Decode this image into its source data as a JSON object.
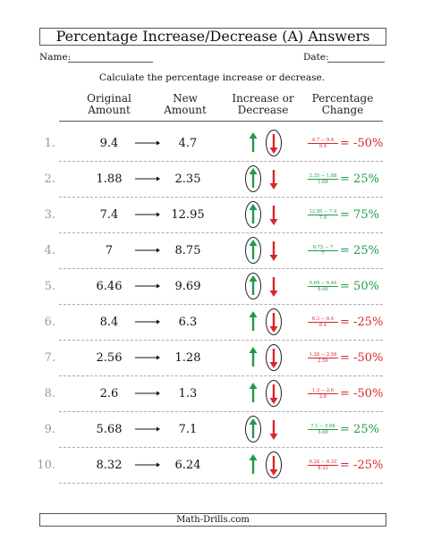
{
  "title": "Percentage Increase/Decrease (A) Answers",
  "name_label": "Name:",
  "date_label": "Date:",
  "instruction": "Calculate the percentage increase or decrease.",
  "headers": {
    "original": [
      "Original",
      "Amount"
    ],
    "new": [
      "New",
      "Amount"
    ],
    "direction": [
      "Increase or",
      "Decrease"
    ],
    "change": [
      "Percentage",
      "Change"
    ]
  },
  "rows": [
    {
      "num": "1.",
      "original": "9.4",
      "new": "4.7",
      "direction": "decrease",
      "numerator": "4.7 − 9.4",
      "denominator": "9.4",
      "equals": "=",
      "answer": "-50%",
      "color": "#d9262b"
    },
    {
      "num": "2.",
      "original": "1.88",
      "new": "2.35",
      "direction": "increase",
      "numerator": "2.35 − 1.88",
      "denominator": "1.88",
      "equals": "=",
      "answer": "25%",
      "color": "#1f9a48"
    },
    {
      "num": "3.",
      "original": "7.4",
      "new": "12.95",
      "direction": "increase",
      "numerator": "12.95 − 7.4",
      "denominator": "7.4",
      "equals": "=",
      "answer": "75%",
      "color": "#1f9a48"
    },
    {
      "num": "4.",
      "original": "7",
      "new": "8.75",
      "direction": "increase",
      "numerator": "8.75 − 7",
      "denominator": "7",
      "equals": "=",
      "answer": "25%",
      "color": "#1f9a48"
    },
    {
      "num": "5.",
      "original": "6.46",
      "new": "9.69",
      "direction": "increase",
      "numerator": "9.69 − 6.46",
      "denominator": "6.46",
      "equals": "=",
      "answer": "50%",
      "color": "#1f9a48"
    },
    {
      "num": "6.",
      "original": "8.4",
      "new": "6.3",
      "direction": "decrease",
      "numerator": "6.3 − 8.4",
      "denominator": "8.4",
      "equals": "=",
      "answer": "-25%",
      "color": "#d9262b"
    },
    {
      "num": "7.",
      "original": "2.56",
      "new": "1.28",
      "direction": "decrease",
      "numerator": "1.28 − 2.56",
      "denominator": "2.56",
      "equals": "=",
      "answer": "-50%",
      "color": "#d9262b"
    },
    {
      "num": "8.",
      "original": "2.6",
      "new": "1.3",
      "direction": "decrease",
      "numerator": "1.3 − 2.6",
      "denominator": "2.6",
      "equals": "=",
      "answer": "-50%",
      "color": "#d9262b"
    },
    {
      "num": "9.",
      "original": "5.68",
      "new": "7.1",
      "direction": "increase",
      "numerator": "7.1 − 5.68",
      "denominator": "5.68",
      "equals": "=",
      "answer": "25%",
      "color": "#1f9a48"
    },
    {
      "num": "10.",
      "original": "8.32",
      "new": "6.24",
      "direction": "decrease",
      "numerator": "6.24 − 8.32",
      "denominator": "8.32",
      "equals": "=",
      "answer": "-25%",
      "color": "#d9262b"
    }
  ],
  "footer": "Math-Drills.com",
  "colors": {
    "increase": "#1f9a48",
    "decrease": "#d9262b"
  }
}
